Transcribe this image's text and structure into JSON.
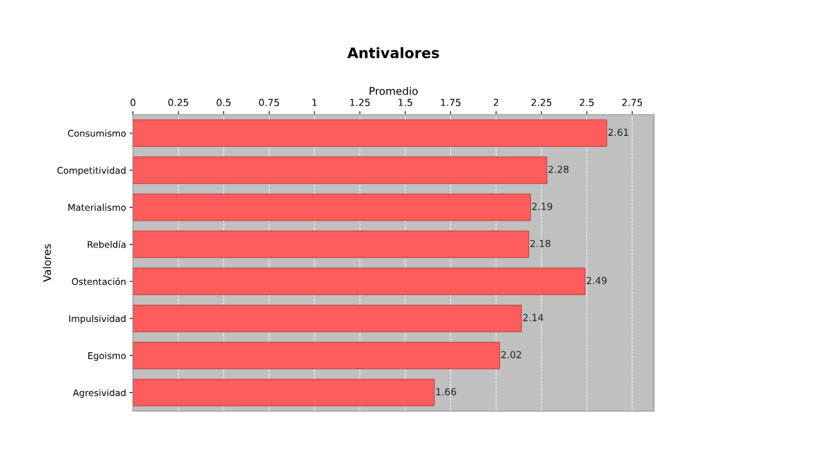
{
  "chart_data": {
    "type": "bar",
    "orientation": "horizontal",
    "title": "Antivalores",
    "xlabel": "Promedio",
    "ylabel": "Valores",
    "categories": [
      "Consumismo",
      "Competitividad",
      "Materialismo",
      "Rebeldía",
      "Ostentación",
      "Impulsividad",
      "Egoismo",
      "Agresividad"
    ],
    "values": [
      2.61,
      2.28,
      2.19,
      2.18,
      2.49,
      2.14,
      2.02,
      1.66
    ],
    "color": "#ff5c5c",
    "data_labels": true,
    "xlim": [
      0,
      2.87
    ],
    "xticks": [
      0,
      0.25,
      0.5,
      0.75,
      1,
      1.25,
      1.5,
      1.75,
      2,
      2.25,
      2.5,
      2.75
    ],
    "grid": "x"
  }
}
